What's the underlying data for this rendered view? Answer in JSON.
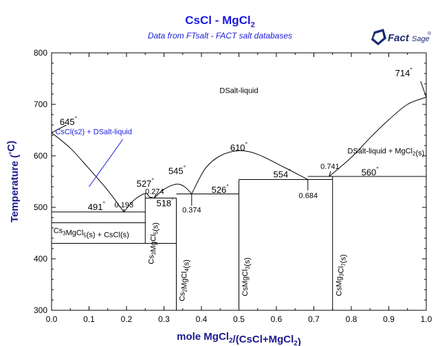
{
  "title": {
    "main": "CsCl - MgCl",
    "main_sub": "2"
  },
  "subtitle": "Data from FTsalt - FACT salt databases",
  "logo": {
    "text_main": "Fact",
    "text_sub": "Sage",
    "mark": "®",
    "icon": "factsage-logo-icon"
  },
  "axes": {
    "x_label": "mole MgCl",
    "x_label_sub1": "2",
    "x_label_mid": "/(CsCl+MgCl",
    "x_label_sub2": "2",
    "x_label_end": ")",
    "y_label": "Temperature (",
    "y_label_deg": "°",
    "y_label_end": "C)",
    "x_ticks": [
      "0.0",
      "0.1",
      "0.2",
      "0.3",
      "0.4",
      "0.5",
      "0.6",
      "0.7",
      "0.8",
      "0.9",
      "1.0"
    ],
    "y_ticks": [
      "300",
      "400",
      "500",
      "600",
      "700",
      "800"
    ]
  },
  "chart_data": {
    "type": "phase-diagram",
    "xlim": [
      0,
      1
    ],
    "ylim": [
      300,
      800
    ],
    "liquidus": [
      {
        "name": "CsCl",
        "points": [
          [
            0.0,
            645
          ],
          [
            0.05,
            615
          ],
          [
            0.1,
            575
          ],
          [
            0.15,
            533
          ],
          [
            0.193,
            491
          ]
        ]
      },
      {
        "name": "Cs3MgCl5 left",
        "points": [
          [
            0.193,
            491
          ],
          [
            0.22,
            514
          ],
          [
            0.25,
            527
          ],
          [
            0.262,
            520
          ],
          [
            0.274,
            518
          ]
        ]
      },
      {
        "name": "Cs3MgCl5 right",
        "points": [
          [
            0.274,
            518
          ],
          [
            0.3,
            535
          ],
          [
            0.333,
            545
          ],
          [
            0.355,
            540
          ],
          [
            0.374,
            526
          ]
        ]
      },
      {
        "name": "CsMgCl3",
        "points": [
          [
            0.374,
            526
          ],
          [
            0.41,
            575
          ],
          [
            0.45,
            600
          ],
          [
            0.5,
            610
          ],
          [
            0.55,
            603
          ],
          [
            0.62,
            578
          ],
          [
            0.684,
            554
          ]
        ]
      },
      {
        "name": "MgCl2",
        "points": [
          [
            0.741,
            560
          ],
          [
            0.8,
            597
          ],
          [
            0.85,
            635
          ],
          [
            0.9,
            670
          ],
          [
            0.95,
            700
          ],
          [
            1.0,
            714
          ]
        ]
      }
    ],
    "vertical_lines": [
      {
        "x": 0.25,
        "y1": 430,
        "y2": 527
      },
      {
        "x": 0.333,
        "y1": 300,
        "y2": 518
      },
      {
        "x": 0.5,
        "y1": 300,
        "y2": 554
      },
      {
        "x": 0.75,
        "y1": 300,
        "y2": 560
      }
    ],
    "horizontal_lines": [
      {
        "y": 491,
        "x1": 0.0,
        "x2": 0.25
      },
      {
        "y": 470,
        "x1": 0.0,
        "x2": 0.25
      },
      {
        "y": 430,
        "x1": 0.0,
        "x2": 0.333
      },
      {
        "y": 518,
        "x1": 0.25,
        "x2": 0.333
      },
      {
        "y": 526,
        "x1": 0.333,
        "x2": 0.5
      },
      {
        "y": 554,
        "x1": 0.5,
        "x2": 0.75
      },
      {
        "y": 560,
        "x1": 0.684,
        "x2": 1.0
      }
    ],
    "temperature_labels": [
      {
        "text": "645",
        "x": 0.045,
        "y": 660,
        "deg": true
      },
      {
        "text": "491",
        "x": 0.12,
        "y": 495,
        "deg": true
      },
      {
        "text": "527",
        "x": 0.25,
        "y": 540,
        "deg": true
      },
      {
        "text": "545",
        "x": 0.335,
        "y": 565,
        "deg": true
      },
      {
        "text": "518",
        "x": 0.303,
        "y": 502,
        "deg": true
      },
      {
        "text": "526",
        "x": 0.45,
        "y": 528,
        "deg": true
      },
      {
        "text": "610",
        "x": 0.5,
        "y": 610,
        "deg": true
      },
      {
        "text": "554",
        "x": 0.615,
        "y": 558,
        "deg": true
      },
      {
        "text": "560",
        "x": 0.85,
        "y": 562,
        "deg": true
      },
      {
        "text": "714",
        "x": 0.94,
        "y": 755,
        "deg": true
      }
    ],
    "composition_labels": [
      {
        "text": "0.193",
        "x": 0.193,
        "y": 500
      },
      {
        "text": "0.274",
        "x": 0.275,
        "y": 526
      },
      {
        "text": "0.374",
        "x": 0.374,
        "y": 490
      },
      {
        "text": "0.684",
        "x": 0.685,
        "y": 518
      },
      {
        "text": "0.741",
        "x": 0.743,
        "y": 575
      }
    ],
    "leader_lines": [
      [
        [
          0.0,
          645
        ],
        [
          0.04,
          660
        ]
      ],
      [
        [
          0.193,
          491
        ],
        [
          0.193,
          497
        ]
      ],
      [
        [
          0.274,
          518
        ],
        [
          0.28,
          527
        ]
      ],
      [
        [
          0.374,
          526
        ],
        [
          0.374,
          503
        ]
      ],
      [
        [
          0.684,
          554
        ],
        [
          0.684,
          533
        ]
      ],
      [
        [
          0.741,
          560
        ],
        [
          0.745,
          570
        ]
      ],
      [
        [
          1.0,
          714
        ],
        [
          0.985,
          745
        ]
      ],
      [
        [
          0.1,
          540
        ],
        [
          0.19,
          632
        ]
      ]
    ],
    "region_labels": [
      {
        "text": "DSalt-liquid",
        "x": 0.5,
        "y": 722
      },
      {
        "text": "CsCl(s2) + DSalt-liquid",
        "x": 0.01,
        "y": 642,
        "color": "#1a1adc"
      },
      {
        "text": "DSalt-liquid + MgCl",
        "sub": "2",
        "tail": "(s)",
        "x": 0.79,
        "y": 605
      },
      {
        "text": "Cs",
        "sub": "3",
        "mid": "MgCl",
        "sub2": "5",
        "tail": "(s) + CsCl(s)",
        "x": 0.005,
        "y": 450
      }
    ],
    "vertical_labels": [
      {
        "text": "Cs",
        "sub": "3",
        "mid": "MgCl",
        "sub2": "5",
        "tail": "(s)",
        "x": 0.254,
        "y": 430
      },
      {
        "text": "Cs",
        "sub": "2",
        "mid": "MgCl",
        "sub2": "4",
        "tail": "(s)",
        "x": 0.337,
        "y": 358
      },
      {
        "text": "CsMgCl",
        "sub": "3",
        "mid": "",
        "sub2": "",
        "tail": "(s)",
        "x": 0.505,
        "y": 365
      },
      {
        "text": "CsMg",
        "sub": "3",
        "mid": "Cl",
        "sub2": "7",
        "tail": "(s)",
        "x": 0.755,
        "y": 368
      }
    ]
  }
}
